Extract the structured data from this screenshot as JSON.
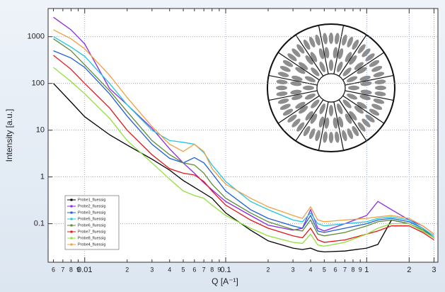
{
  "chart_data": {
    "type": "line",
    "xlabel": "Q [A⁻¹]",
    "ylabel": "Intensity [a.u.]",
    "xscale": "log",
    "yscale": "log",
    "grid": true,
    "legend": "lower left",
    "xlim": [
      0.0055,
      3.2
    ],
    "ylim": [
      0.015,
      4000
    ],
    "yticks": [
      0.1,
      1,
      10,
      100,
      1000
    ],
    "xticks": [
      {
        "value": 0.006,
        "label": "6"
      },
      {
        "value": 0.007,
        "label": "7"
      },
      {
        "value": 0.008,
        "label": "8"
      },
      {
        "value": 0.009,
        "label": "9"
      },
      0.01,
      {
        "value": 0.02,
        "label": "2"
      },
      {
        "value": 0.03,
        "label": "3"
      },
      {
        "value": 0.04,
        "label": "4"
      },
      {
        "value": 0.05,
        "label": "5"
      },
      {
        "value": 0.06,
        "label": "6"
      },
      {
        "value": 0.07,
        "label": "7"
      },
      {
        "value": 0.08,
        "label": "8"
      },
      {
        "value": 0.09,
        "label": "9"
      },
      0.1,
      {
        "value": 0.2,
        "label": "2"
      },
      {
        "value": 0.3,
        "label": "3"
      },
      {
        "value": 0.4,
        "label": "4"
      },
      {
        "value": 0.5,
        "label": "5"
      },
      {
        "value": 0.6,
        "label": "6"
      },
      {
        "value": 0.7,
        "label": "7"
      },
      {
        "value": 0.8,
        "label": "8"
      },
      {
        "value": 0.9,
        "label": "9"
      },
      1,
      2,
      3
    ],
    "x": [
      0.006,
      0.008,
      0.01,
      0.015,
      0.02,
      0.03,
      0.04,
      0.05,
      0.06,
      0.07,
      0.08,
      0.1,
      0.15,
      0.2,
      0.3,
      0.35,
      0.4,
      0.45,
      0.5,
      0.7,
      1.0,
      1.2,
      1.5,
      2.0,
      2.5,
      3.0
    ],
    "series": [
      {
        "name": "Probe1_fluessig",
        "color": "#000000",
        "values": [
          100,
          40,
          19.4,
          8,
          4.8,
          2.4,
          1.4,
          0.84,
          0.6,
          0.45,
          0.35,
          0.17,
          0.073,
          0.043,
          0.03,
          0.028,
          0.03,
          0.026,
          0.025,
          0.026,
          0.03,
          0.036,
          0.12,
          0.1,
          0.07,
          0.05
        ]
      },
      {
        "name": "Probe2_fluessig",
        "color": "#8a2be2",
        "values": [
          2600,
          1400,
          700,
          78,
          35,
          11,
          4,
          2,
          1.2,
          0.75,
          0.53,
          0.3,
          0.15,
          0.093,
          0.073,
          0.08,
          0.2,
          0.08,
          0.07,
          0.1,
          0.15,
          0.3,
          0.2,
          0.12,
          0.09,
          0.06
        ]
      },
      {
        "name": "Probe3_fluessig",
        "color": "#1f5fd6",
        "values": [
          500,
          350,
          220,
          60,
          20,
          5,
          2.5,
          2,
          2.6,
          2,
          1.2,
          0.5,
          0.2,
          0.13,
          0.09,
          0.08,
          0.15,
          0.07,
          0.065,
          0.08,
          0.1,
          0.12,
          0.13,
          0.11,
          0.08,
          0.05
        ]
      },
      {
        "name": "Probe5_fluessig",
        "color": "#22c5e0",
        "values": [
          1000,
          600,
          380,
          100,
          35,
          10,
          6,
          5.5,
          5,
          3.3,
          1.8,
          0.8,
          0.3,
          0.2,
          0.12,
          0.11,
          0.17,
          0.1,
          0.09,
          0.1,
          0.11,
          0.13,
          0.14,
          0.12,
          0.08,
          0.055
        ]
      },
      {
        "name": "Probe6_fluessig",
        "color": "#5f8a3a",
        "values": [
          900,
          500,
          250,
          70,
          25,
          6,
          3,
          2,
          1.8,
          1.2,
          0.7,
          0.35,
          0.17,
          0.11,
          0.075,
          0.07,
          0.12,
          0.06,
          0.055,
          0.065,
          0.09,
          0.11,
          0.12,
          0.1,
          0.075,
          0.05
        ]
      },
      {
        "name": "Probe7_fluessig",
        "color": "#e0161b",
        "values": [
          400,
          200,
          100,
          30,
          10,
          3,
          1.5,
          1.2,
          1.1,
          0.8,
          0.5,
          0.25,
          0.12,
          0.08,
          0.055,
          0.05,
          0.08,
          0.045,
          0.04,
          0.045,
          0.06,
          0.07,
          0.09,
          0.09,
          0.065,
          0.045
        ]
      },
      {
        "name": "Probe8_fluessig",
        "color": "#8fe03a",
        "values": [
          220,
          110,
          60,
          18,
          6,
          2,
          0.9,
          0.5,
          0.4,
          0.35,
          0.25,
          0.15,
          0.08,
          0.055,
          0.04,
          0.038,
          0.06,
          0.035,
          0.033,
          0.04,
          0.06,
          0.08,
          0.1,
          0.1,
          0.07,
          0.05
        ]
      },
      {
        "name": "Probe4_fluessig",
        "color": "#f0a040",
        "values": [
          1400,
          900,
          550,
          150,
          50,
          12,
          5,
          3.5,
          5,
          3.5,
          1.5,
          0.7,
          0.35,
          0.23,
          0.15,
          0.13,
          0.23,
          0.12,
          0.11,
          0.12,
          0.13,
          0.14,
          0.15,
          0.13,
          0.09,
          0.06
        ]
      }
    ]
  }
}
